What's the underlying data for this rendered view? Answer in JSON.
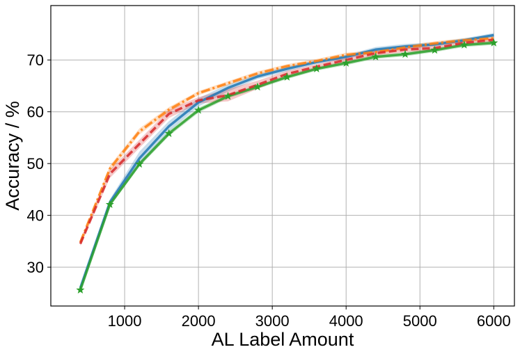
{
  "chart_data": {
    "type": "line",
    "title": "",
    "xlabel": "AL Label Amount",
    "ylabel": "Accuracy / %",
    "xlim": [
      0,
      6280
    ],
    "ylim": [
      22.5,
      80.5
    ],
    "xticks": [
      1000,
      2000,
      3000,
      4000,
      5000,
      6000
    ],
    "yticks": [
      30,
      40,
      50,
      60,
      70
    ],
    "grid": true,
    "legend": "none",
    "x": [
      400,
      800,
      1200,
      1600,
      2000,
      2400,
      2800,
      3200,
      3600,
      4000,
      4400,
      4800,
      5200,
      5600,
      6000
    ],
    "series": [
      {
        "color": "#1f77b4",
        "linestyle": "solid",
        "marker": "none",
        "values": [
          26,
          42.5,
          51.0,
          57.2,
          61.8,
          64.6,
          66.8,
          68.3,
          69.6,
          70.6,
          72.0,
          72.6,
          73.0,
          73.8,
          74.8
        ],
        "band": [
          0.4,
          0.6,
          1.3,
          1.0,
          0.8,
          0.7,
          0.5,
          0.5,
          0.4,
          0.4,
          0.5,
          0.5,
          0.4,
          0.4,
          0.4
        ]
      },
      {
        "color": "#ff7f0e",
        "linestyle": "dashdot",
        "marker": "none",
        "values": [
          34.8,
          49.0,
          56.2,
          60.4,
          63.6,
          65.5,
          67.4,
          68.8,
          69.8,
          71.0,
          71.5,
          72.4,
          73.2,
          73.8,
          74.2
        ],
        "band": [
          0.4,
          0.6,
          0.6,
          0.5,
          0.4,
          0.4,
          0.4,
          0.4,
          0.4,
          0.4,
          0.4,
          0.4,
          0.4,
          0.4,
          0.4
        ]
      },
      {
        "color": "#2ca02c",
        "linestyle": "solid",
        "marker": "star",
        "values": [
          25.6,
          42.1,
          49.9,
          55.8,
          60.3,
          63.0,
          64.8,
          66.7,
          68.3,
          69.4,
          70.6,
          71.1,
          71.9,
          72.9,
          73.3
        ],
        "band": [
          0.3,
          0.4,
          0.5,
          0.5,
          0.5,
          0.4,
          0.4,
          0.4,
          0.4,
          0.4,
          0.4,
          0.4,
          0.4,
          0.4,
          0.4
        ]
      },
      {
        "color": "#d62728",
        "linestyle": "dashed",
        "marker": "none",
        "values": [
          34.5,
          48.0,
          53.8,
          59.6,
          62.2,
          63.2,
          65.2,
          67.3,
          68.7,
          70.0,
          71.3,
          72.0,
          72.3,
          73.3,
          73.9
        ],
        "band": [
          0.4,
          0.8,
          0.8,
          0.8,
          0.6,
          1.2,
          0.8,
          0.6,
          0.5,
          0.5,
          0.5,
          0.5,
          0.5,
          0.4,
          0.4
        ]
      }
    ]
  }
}
